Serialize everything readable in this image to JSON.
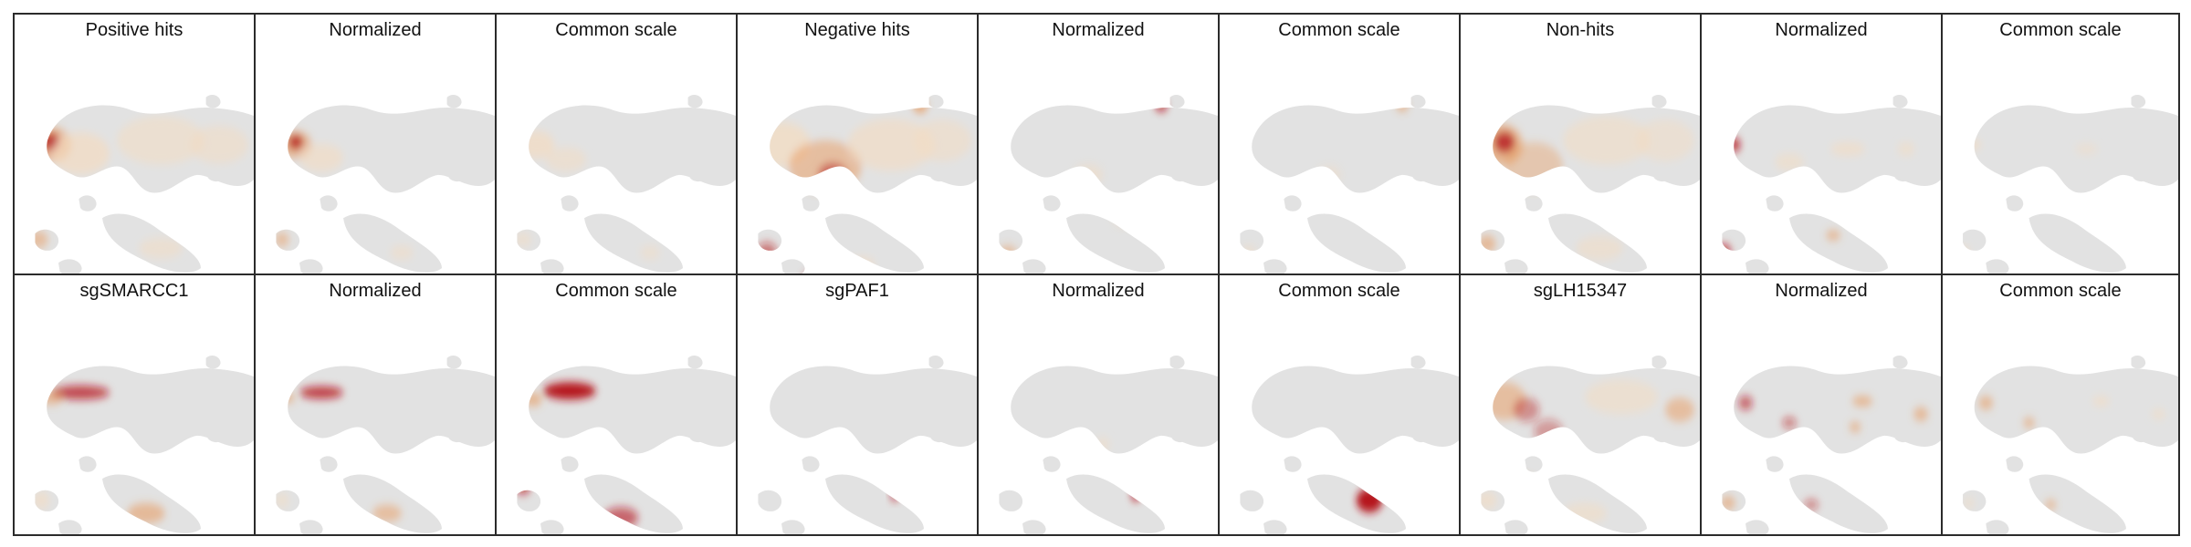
{
  "figure": {
    "rows": [
      {
        "panels": [
          {
            "title": "Positive hits",
            "variant": "pos-raw"
          },
          {
            "title": "Normalized",
            "variant": "pos-norm"
          },
          {
            "title": "Common scale",
            "variant": "pos-common"
          },
          {
            "title": "Negative hits",
            "variant": "neg-raw"
          },
          {
            "title": "Normalized",
            "variant": "neg-norm"
          },
          {
            "title": "Common scale",
            "variant": "neg-common"
          },
          {
            "title": "Non-hits",
            "variant": "non-raw"
          },
          {
            "title": "Normalized",
            "variant": "non-norm"
          },
          {
            "title": "Common scale",
            "variant": "non-common"
          }
        ]
      },
      {
        "panels": [
          {
            "title": "sgSMARCC1",
            "variant": "smarcc1-raw"
          },
          {
            "title": "Normalized",
            "variant": "smarcc1-norm"
          },
          {
            "title": "Common scale",
            "variant": "smarcc1-common"
          },
          {
            "title": "sgPAF1",
            "variant": "paf1-raw"
          },
          {
            "title": "Normalized",
            "variant": "paf1-norm"
          },
          {
            "title": "Common scale",
            "variant": "paf1-common"
          },
          {
            "title": "sgLH15347",
            "variant": "lh-raw"
          },
          {
            "title": "Normalized",
            "variant": "lh-norm"
          },
          {
            "title": "Common scale",
            "variant": "lh-common"
          }
        ]
      }
    ],
    "colors": {
      "background_cells": "#e2e2e2",
      "density_low": "#f3dcc2",
      "density_mid": "#e8924f",
      "density_high": "#b5131b",
      "border": "#2b2b2b"
    }
  }
}
